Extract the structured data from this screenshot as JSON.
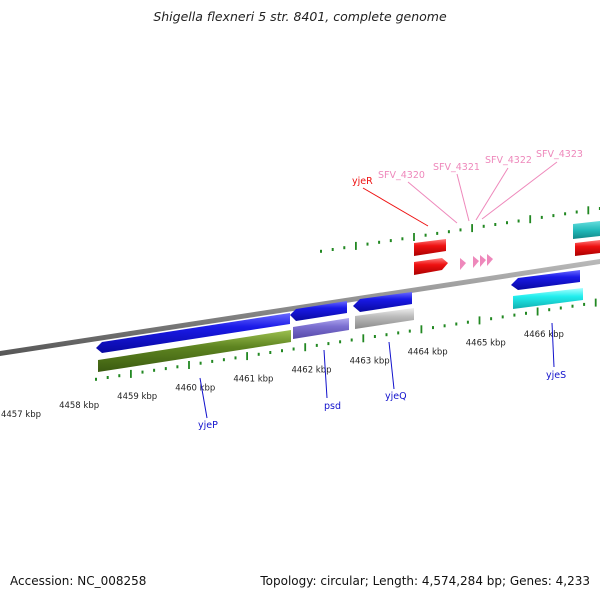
{
  "title": "Shigella flexneri 5 str. 8401, complete genome",
  "footer": {
    "accession": "Accession: NC_008258",
    "summary": "Topology: circular; Length: 4,574,284 bp; Genes: 4,233"
  },
  "scale_labels": [
    "4457 kbp",
    "4458 kbp",
    "4459 kbp",
    "4460 kbp",
    "4461 kbp",
    "4462 kbp",
    "4463 kbp",
    "4464 kbp",
    "4465 kbp",
    "4466 kbp"
  ],
  "gene_labels": {
    "yjeP": "yjeP",
    "psd": "psd",
    "yjeQ": "yjeQ",
    "yjeS": "yjeS",
    "yjeR": "yjeR",
    "sfv4320": "SFV_4320",
    "sfv4321": "SFV_4321",
    "sfv4322": "SFV_4322",
    "sfv4323": "SFV_4323"
  },
  "colors": {
    "blue": "#1111dd",
    "olive": "#5a7f1a",
    "purple": "#7b6fd0",
    "gray": "#b8b8b8",
    "red": "#ee1111",
    "cyan": "#22eeee",
    "teal": "#22bbbb",
    "pink": "#ee88bb",
    "tick": "#228822",
    "backbone": "#888888"
  }
}
